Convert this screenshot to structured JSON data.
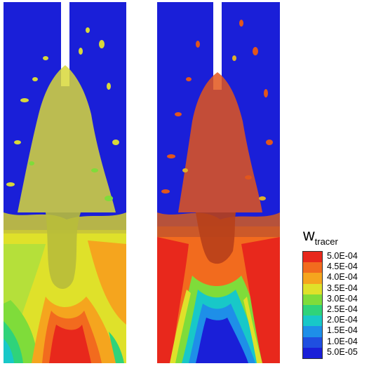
{
  "figure": {
    "panels": [
      {
        "id": "left",
        "caption": ""
      },
      {
        "id": "right",
        "caption": ""
      }
    ],
    "legend": {
      "title_main": "w",
      "title_sub": "tracer",
      "levels": [
        {
          "label": "5.0E-04",
          "color": "#e8281c"
        },
        {
          "label": "4.5E-04",
          "color": "#f26b1e"
        },
        {
          "label": "4.0E-04",
          "color": "#f5a51e"
        },
        {
          "label": "3.5E-04",
          "color": "#dfe12a"
        },
        {
          "label": "3.0E-04",
          "color": "#7fdc3a"
        },
        {
          "label": "2.5E-04",
          "color": "#2fd37a"
        },
        {
          "label": "2.0E-04",
          "color": "#18c8c8"
        },
        {
          "label": "1.5E-04",
          "color": "#1e8fe8"
        },
        {
          "label": "1.0E-04",
          "color": "#1f4fe0"
        },
        {
          "label": "5.0E-05",
          "color": "#1a1fd8"
        }
      ]
    },
    "colors": {
      "background_blue": "#1a1fd8",
      "jet_white": "#ffffff",
      "iso_yellow_green": "#d8d83a",
      "iso_red_orange": "#e2561c"
    }
  }
}
